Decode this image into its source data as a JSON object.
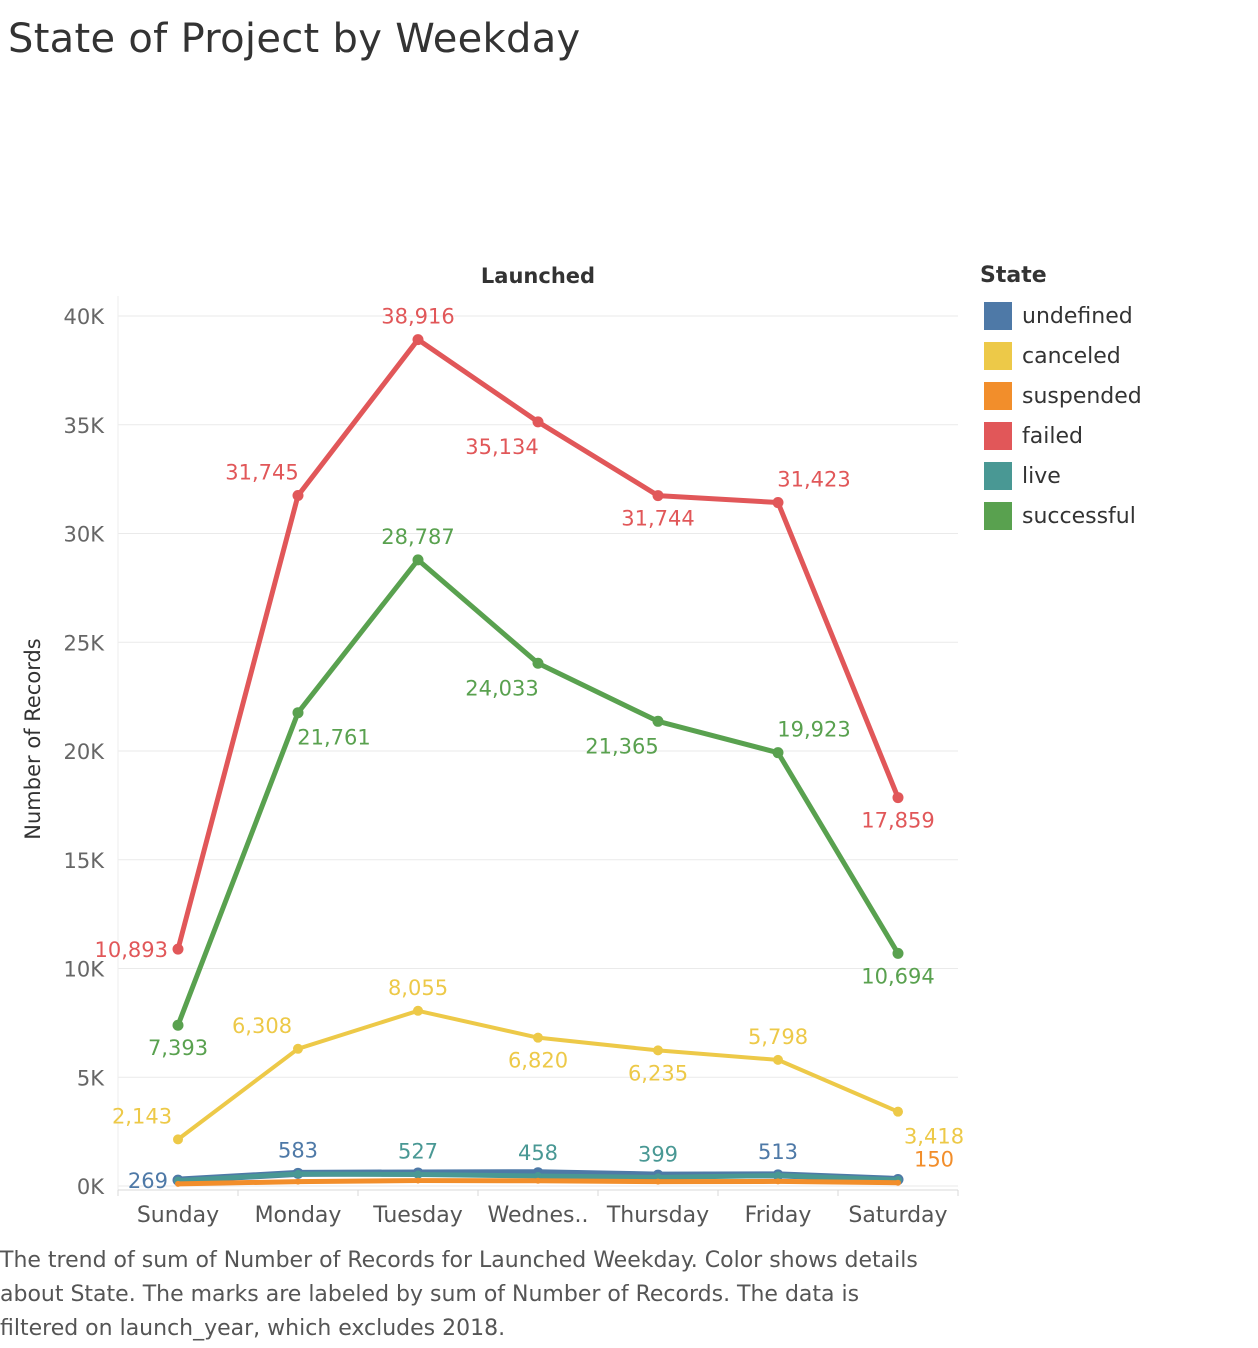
{
  "title": "State of Project by Weekday",
  "caption": {
    "line1": "The trend of sum of Number of Records for Launched Weekday.  Color shows details",
    "line2": "about State.  The marks are labeled by sum of Number of Records. The data is",
    "line3": "filtered on launch_year, which excludes 2018."
  },
  "legend": {
    "title": "State",
    "items": [
      {
        "label": "undefined",
        "color": "#4e79a7"
      },
      {
        "label": "canceled",
        "color": "#edc948"
      },
      {
        "label": "suspended",
        "color": "#f28e2b"
      },
      {
        "label": "failed",
        "color": "#e15759"
      },
      {
        "label": "live",
        "color": "#499894"
      },
      {
        "label": "successful",
        "color": "#59a14f"
      }
    ]
  },
  "chart_data": {
    "type": "line",
    "title": "Launched",
    "xlabel": "",
    "ylabel": "Number of Records",
    "categories": [
      "Sunday",
      "Monday",
      "Tuesday",
      "Wednes..",
      "Thursday",
      "Friday",
      "Saturday"
    ],
    "ylim": [
      0,
      40000
    ],
    "yticks": [
      0,
      5000,
      10000,
      15000,
      20000,
      25000,
      30000,
      35000,
      40000
    ],
    "ytick_labels": [
      "0K",
      "5K",
      "10K",
      "15K",
      "20K",
      "25K",
      "30K",
      "35K",
      "40K"
    ],
    "grid": true,
    "legend_position": "right",
    "series": [
      {
        "name": "undefined",
        "color": "#4e79a7",
        "values": [
          269,
          583,
          600,
          610,
          500,
          513,
          300
        ]
      },
      {
        "name": "live",
        "color": "#499894",
        "values": [
          250,
          550,
          527,
          458,
          399,
          480,
          280
        ]
      },
      {
        "name": "suspended",
        "color": "#f28e2b",
        "values": [
          100,
          200,
          250,
          240,
          200,
          210,
          150
        ]
      },
      {
        "name": "canceled",
        "color": "#edc948",
        "values": [
          2143,
          6308,
          8055,
          6820,
          6235,
          5798,
          3418
        ]
      },
      {
        "name": "successful",
        "color": "#59a14f",
        "values": [
          7393,
          21761,
          28787,
          24033,
          21365,
          19923,
          10694
        ]
      },
      {
        "name": "failed",
        "color": "#e15759",
        "values": [
          10893,
          31745,
          38916,
          35134,
          31744,
          31423,
          17859
        ]
      }
    ],
    "labels": [
      {
        "series": "failed",
        "index": 0,
        "text": "10,893",
        "pos": "left"
      },
      {
        "series": "failed",
        "index": 1,
        "text": "31,745",
        "pos": "upleft"
      },
      {
        "series": "failed",
        "index": 2,
        "text": "38,916",
        "pos": "above"
      },
      {
        "series": "failed",
        "index": 3,
        "text": "35,134",
        "pos": "belowleft"
      },
      {
        "series": "failed",
        "index": 4,
        "text": "31,744",
        "pos": "below"
      },
      {
        "series": "failed",
        "index": 5,
        "text": "31,423",
        "pos": "upright"
      },
      {
        "series": "failed",
        "index": 6,
        "text": "17,859",
        "pos": "below"
      },
      {
        "series": "successful",
        "index": 0,
        "text": "7,393",
        "pos": "below"
      },
      {
        "series": "successful",
        "index": 1,
        "text": "21,761",
        "pos": "belowright"
      },
      {
        "series": "successful",
        "index": 2,
        "text": "28,787",
        "pos": "above"
      },
      {
        "series": "successful",
        "index": 3,
        "text": "24,033",
        "pos": "belowleft"
      },
      {
        "series": "successful",
        "index": 4,
        "text": "21,365",
        "pos": "belowleft"
      },
      {
        "series": "successful",
        "index": 5,
        "text": "19,923",
        "pos": "upright"
      },
      {
        "series": "successful",
        "index": 6,
        "text": "10,694",
        "pos": "below"
      },
      {
        "series": "canceled",
        "index": 0,
        "text": "2,143",
        "pos": "upleft"
      },
      {
        "series": "canceled",
        "index": 1,
        "text": "6,308",
        "pos": "upleft"
      },
      {
        "series": "canceled",
        "index": 2,
        "text": "8,055",
        "pos": "above"
      },
      {
        "series": "canceled",
        "index": 3,
        "text": "6,820",
        "pos": "below"
      },
      {
        "series": "canceled",
        "index": 4,
        "text": "6,235",
        "pos": "below"
      },
      {
        "series": "canceled",
        "index": 5,
        "text": "5,798",
        "pos": "above"
      },
      {
        "series": "canceled",
        "index": 6,
        "text": "3,418",
        "pos": "belowright"
      },
      {
        "series": "undefined",
        "index": 0,
        "text": "269",
        "pos": "left"
      },
      {
        "series": "undefined",
        "index": 1,
        "text": "583",
        "pos": "above"
      },
      {
        "series": "live",
        "index": 2,
        "text": "527",
        "pos": "above"
      },
      {
        "series": "live",
        "index": 3,
        "text": "458",
        "pos": "above"
      },
      {
        "series": "live",
        "index": 4,
        "text": "399",
        "pos": "above"
      },
      {
        "series": "undefined",
        "index": 5,
        "text": "513",
        "pos": "above"
      },
      {
        "series": "suspended",
        "index": 6,
        "text": "150",
        "pos": "upright"
      }
    ]
  }
}
